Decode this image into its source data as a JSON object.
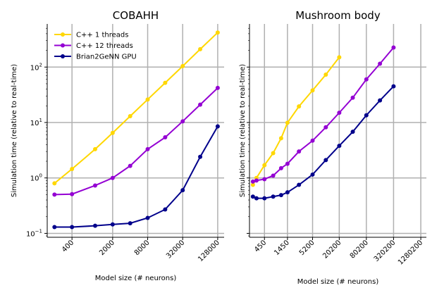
{
  "chart_data": [
    {
      "type": "line",
      "title": "COBAHH",
      "xlabel": "Model size (# neurons)",
      "ylabel": "Simulation time (relative to real-time)",
      "xscale": "log",
      "yscale": "log",
      "grid": true,
      "legend": "top-left",
      "x": [
        200,
        400,
        1000,
        2000,
        4000,
        8000,
        16000,
        32000,
        64000,
        128000
      ],
      "xtick_values": [
        400,
        2000,
        8000,
        32000,
        128000
      ],
      "xtick_labels": [
        "400",
        "2000",
        "8000",
        "32000",
        "128000"
      ],
      "ytick_labels": [
        {
          "base": "10",
          "exp": "−1"
        },
        {
          "base": "10",
          "exp": "0"
        },
        {
          "base": "10",
          "exp": "1"
        },
        {
          "base": "10",
          "exp": "2"
        }
      ],
      "ylim": [
        0.085,
        600
      ],
      "series": [
        {
          "name": "C++  1 threads",
          "color": "#ffd700",
          "values": [
            0.8,
            1.45,
            3.3,
            6.5,
            13,
            26,
            52,
            104,
            210,
            420
          ]
        },
        {
          "name": "C++ 12 threads",
          "color": "#9400d3",
          "values": [
            0.5,
            0.51,
            0.73,
            1.0,
            1.65,
            3.3,
            5.4,
            10.5,
            21,
            42
          ]
        },
        {
          "name": "Brian2GeNN GPU",
          "color": "#00008b",
          "values": [
            0.13,
            0.13,
            0.137,
            0.145,
            0.152,
            0.19,
            0.27,
            0.6,
            2.4,
            8.5
          ]
        }
      ]
    },
    {
      "type": "line",
      "title": "Mushroom body",
      "xlabel": "Model size (# neurons)",
      "ylabel": "Simulation time (relative to real-time)",
      "xscale": "log",
      "yscale": "log",
      "grid": true,
      "x": [
        250,
        300,
        450,
        700,
        1050,
        1450,
        2600,
        5200,
        10200,
        20200,
        40200,
        80200,
        160200,
        320200,
        640200,
        1280200
      ],
      "xtick_values": [
        450,
        1450,
        5200,
        20200,
        80200,
        320200,
        1280200
      ],
      "xtick_labels": [
        "450",
        "1450",
        "5200",
        "20200",
        "80200",
        "320200",
        "1280200"
      ],
      "ytick_labels": [
        {
          "base": "10",
          "exp": "−1"
        },
        {
          "base": "10",
          "exp": "0"
        },
        {
          "base": "10",
          "exp": "1"
        },
        {
          "base": "10",
          "exp": "2"
        }
      ],
      "ylim": [
        0.085,
        600
      ],
      "series": [
        {
          "name": "C++  1 threads",
          "color": "#ffd700",
          "values": [
            0.75,
            1.0,
            1.7,
            2.8,
            5.2,
            9.9,
            19.5,
            38,
            73,
            150,
            null,
            null,
            null,
            null,
            null,
            null
          ]
        },
        {
          "name": "C++ 12 threads",
          "color": "#9400d3",
          "values": [
            0.86,
            0.9,
            0.95,
            1.1,
            1.5,
            1.8,
            3.0,
            4.7,
            8.2,
            15,
            28,
            60,
            115,
            225,
            null,
            null
          ]
        },
        {
          "name": "Brian2GeNN GPU",
          "color": "#00008b",
          "values": [
            0.46,
            0.43,
            0.43,
            0.46,
            0.49,
            0.55,
            0.75,
            1.15,
            2.1,
            3.8,
            6.8,
            13.5,
            25,
            45,
            null,
            null
          ]
        }
      ]
    }
  ]
}
